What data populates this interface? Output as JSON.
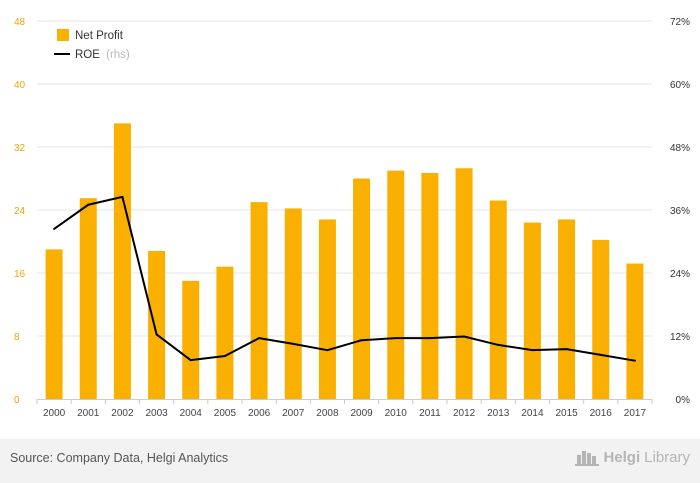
{
  "chart_data": {
    "type": "bar+line",
    "categories": [
      "2000",
      "2001",
      "2002",
      "2003",
      "2004",
      "2005",
      "2006",
      "2007",
      "2008",
      "2009",
      "2010",
      "2011",
      "2012",
      "2013",
      "2014",
      "2015",
      "2016",
      "2017"
    ],
    "series": [
      {
        "name": "Net Profit",
        "type": "bar",
        "axis": "left",
        "color": "#f9b000",
        "values": [
          19.0,
          25.5,
          35.0,
          18.8,
          15.0,
          16.8,
          25.0,
          24.2,
          22.8,
          28.0,
          29.0,
          28.7,
          29.3,
          25.2,
          22.4,
          22.8,
          20.2,
          17.2
        ]
      },
      {
        "name": "ROE",
        "name_note": "(rhs)",
        "type": "line",
        "axis": "right",
        "color": "#000000",
        "values": [
          32.4,
          37.0,
          38.5,
          12.3,
          7.4,
          8.2,
          11.6,
          10.5,
          9.3,
          11.2,
          11.6,
          11.6,
          11.9,
          10.3,
          9.3,
          9.5,
          8.4,
          7.3
        ]
      }
    ],
    "y_left": {
      "ticks": [
        "0",
        "8",
        "16",
        "24",
        "32",
        "40",
        "48"
      ],
      "min": 0,
      "max": 48
    },
    "y_right": {
      "ticks": [
        "0%",
        "12%",
        "24%",
        "36%",
        "48%",
        "60%",
        "72%"
      ],
      "min": 0,
      "max": 72
    },
    "grid": true,
    "legend_position": "top-left"
  },
  "footer": {
    "source": "Source: Company Data, Helgi Analytics",
    "logo_main": "Helgi",
    "logo_sub": "Library",
    "logo_icon": "castle-icon"
  },
  "colors": {
    "bar": "#f9b000",
    "line": "#000000",
    "grid": "#e6e6e6",
    "footer_bg": "#f2f2f2"
  }
}
